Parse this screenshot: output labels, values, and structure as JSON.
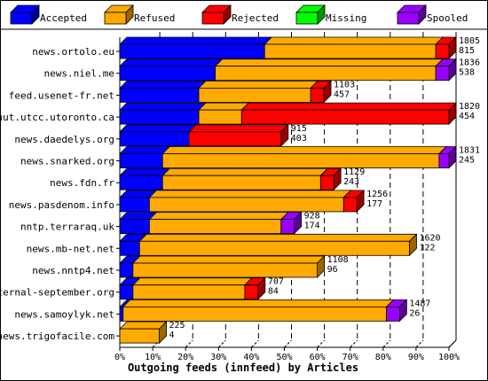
{
  "chart_data": {
    "type": "bar",
    "orientation": "horizontal",
    "stacked": true,
    "title": "",
    "xlabel": "Outgoing feeds (innfeed) by Articles",
    "ylabel": "",
    "xlim": [
      0,
      100
    ],
    "x_ticks": [
      "0%",
      "10%",
      "20%",
      "30%",
      "40%",
      "50%",
      "60%",
      "70%",
      "80%",
      "90%",
      "100%"
    ],
    "grid": "vertical dashed",
    "legend_position": "top",
    "categories": [
      "news.ortolo.eu",
      "news.niel.me",
      "feed.usenet-fr.net",
      "nut.utcc.utoronto.ca",
      "news.daedelys.org",
      "news.snarked.org",
      "news.fdn.fr",
      "news.pasdenom.info",
      "nntp.terraraq.uk",
      "news.mb-net.net",
      "news.nntp4.net",
      "eternal-september.org",
      "news.samoylyk.net",
      "news.trigofacile.com"
    ],
    "series": [
      {
        "name": "Accepted",
        "color": "#0000ff",
        "values": [
          44,
          29,
          24,
          24,
          21,
          13,
          13,
          9,
          9,
          6,
          4,
          4,
          1,
          0
        ]
      },
      {
        "name": "Refused",
        "color": "#ffaa00",
        "values": [
          52,
          67,
          34,
          13,
          0,
          84,
          48,
          59,
          40,
          82,
          56,
          34,
          80,
          12
        ]
      },
      {
        "name": "Rejected",
        "color": "#ff0000",
        "values": [
          4,
          0,
          4,
          63,
          28,
          0,
          4,
          4,
          0,
          0,
          0,
          4,
          0,
          0
        ]
      },
      {
        "name": "Missing",
        "color": "#00ff00",
        "values": [
          0,
          0,
          0,
          0,
          0,
          0,
          0,
          0,
          0,
          0,
          0,
          0,
          0,
          0
        ]
      },
      {
        "name": "Spooled",
        "color": "#9900ff",
        "values": [
          0,
          4,
          0,
          0,
          0,
          3,
          0,
          0,
          4,
          0,
          0,
          0,
          4,
          0
        ]
      }
    ],
    "bar_labels": [
      [
        "1805",
        "815"
      ],
      [
        "1836",
        "538"
      ],
      [
        "1103",
        "457"
      ],
      [
        "1820",
        "454"
      ],
      [
        "915",
        "403"
      ],
      [
        "1831",
        "245"
      ],
      [
        "1129",
        "243"
      ],
      [
        "1256",
        "177"
      ],
      [
        "928",
        "174"
      ],
      [
        "1620",
        "122"
      ],
      [
        "1108",
        "96"
      ],
      [
        "707",
        "84"
      ],
      [
        "1487",
        "26"
      ],
      [
        "225",
        "4"
      ]
    ]
  }
}
